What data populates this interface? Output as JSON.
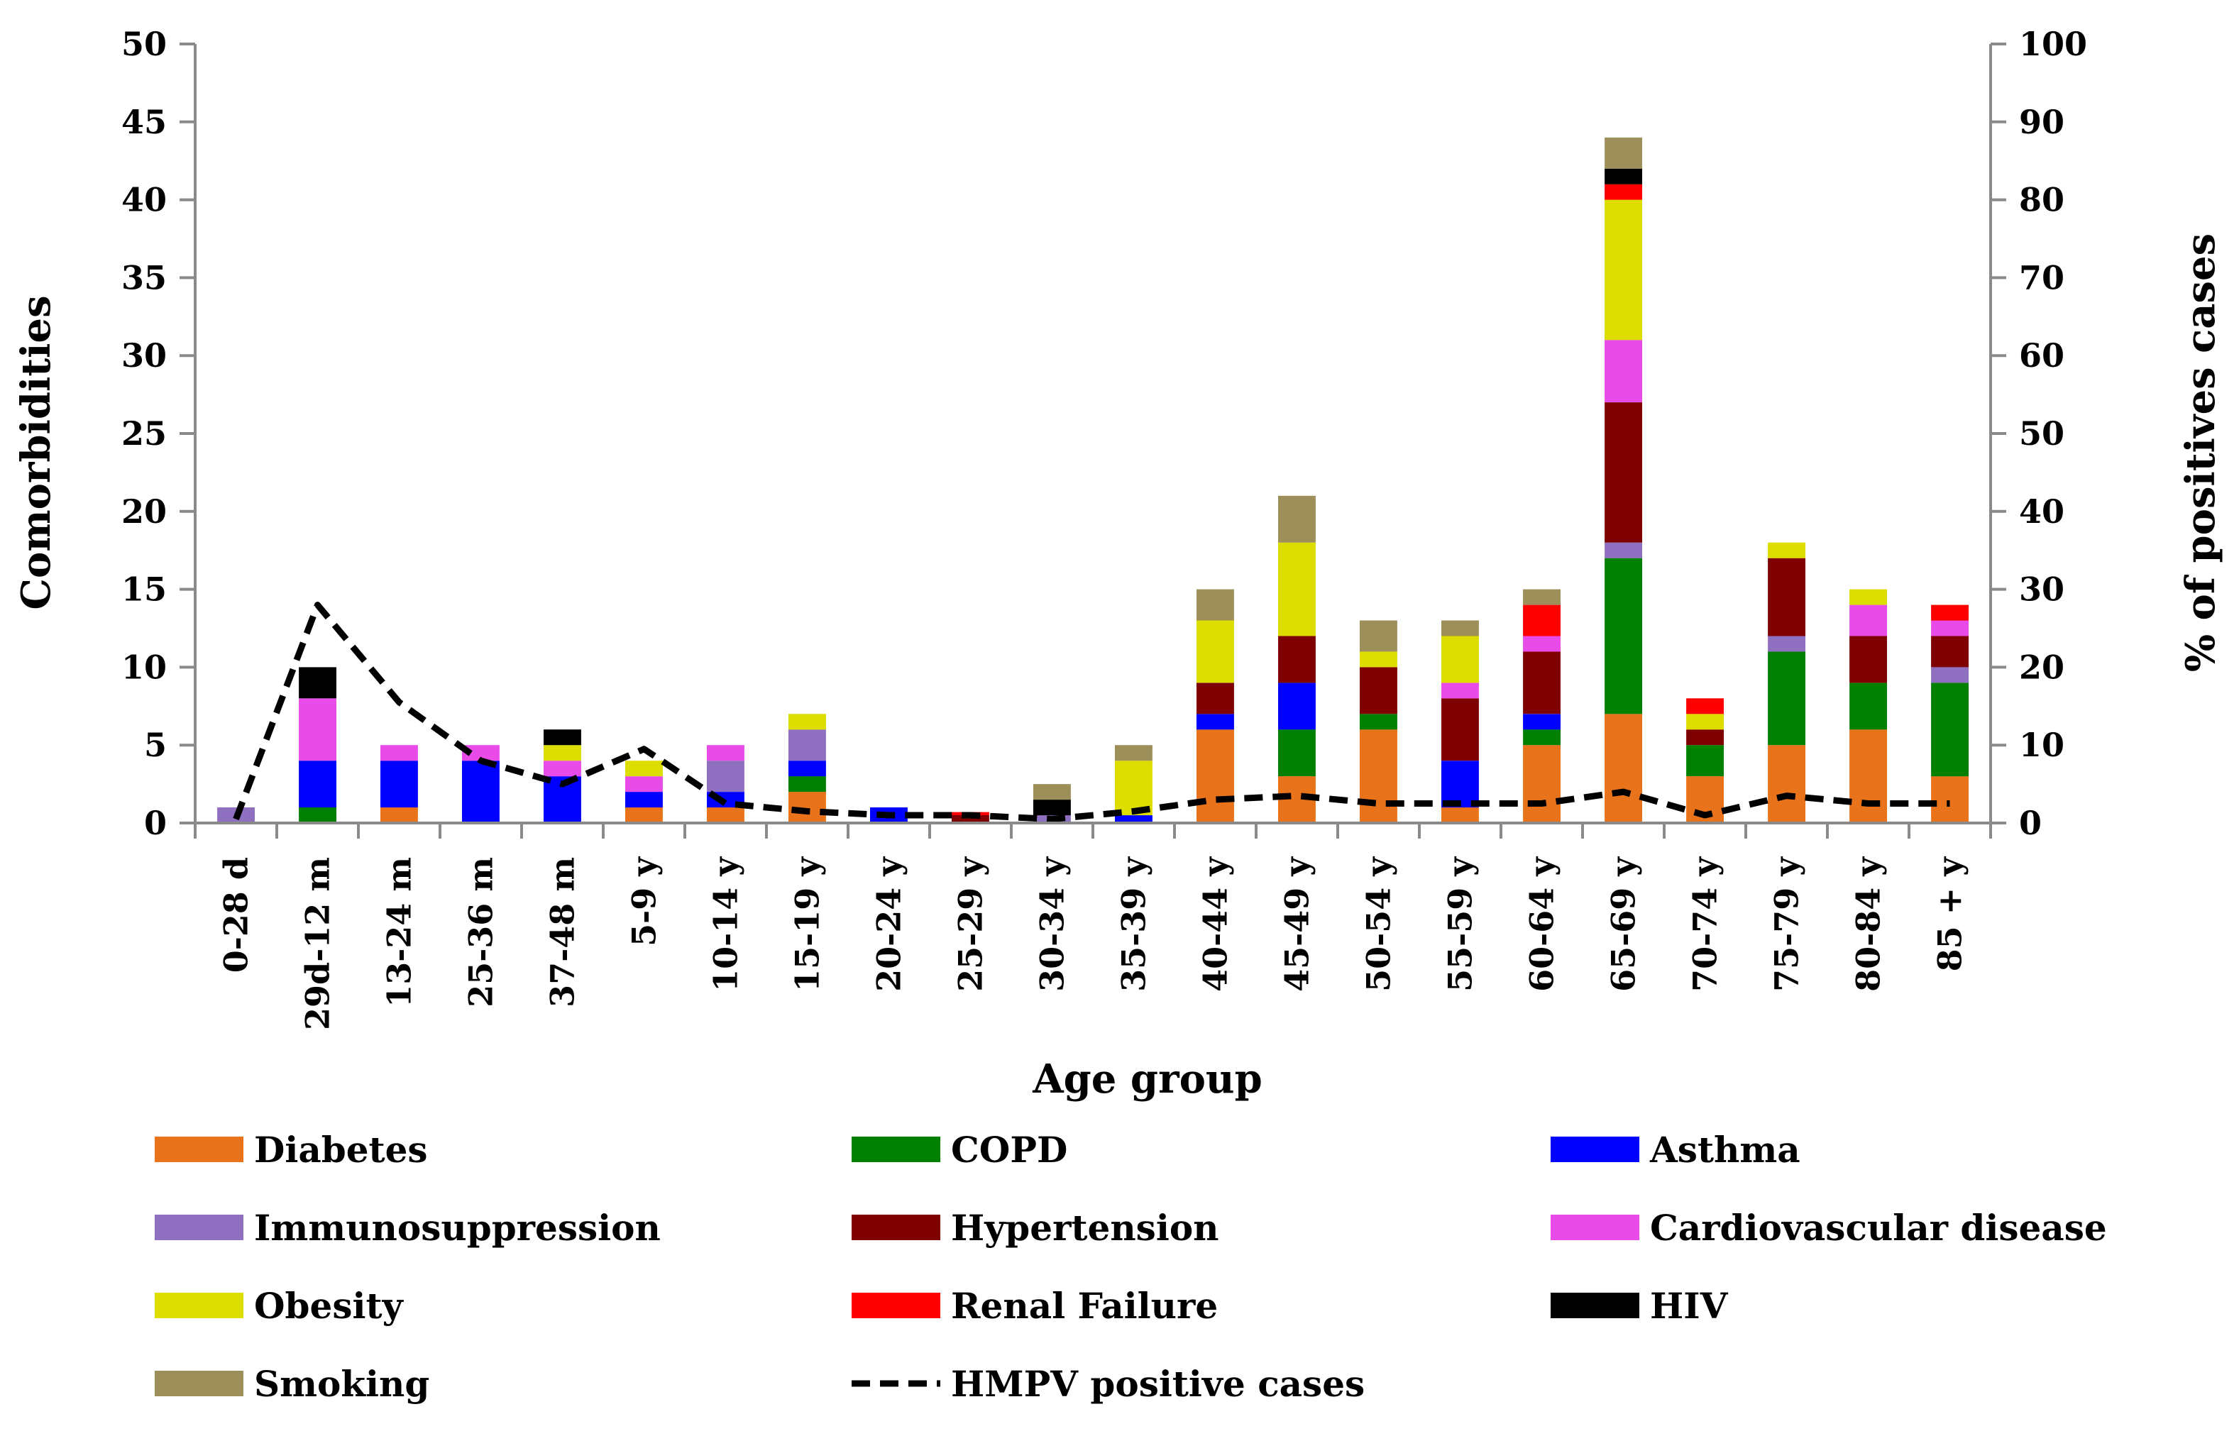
{
  "chart_data": {
    "type": "bar",
    "stacked": true,
    "xlabel": "Age group",
    "ylabel": "Comorbidities",
    "y2label": "% of positives cases",
    "ylim": [
      0,
      50
    ],
    "y2lim": [
      0,
      100
    ],
    "yticks": [
      "0",
      "5",
      "10",
      "15",
      "20",
      "25",
      "30",
      "35",
      "40",
      "45",
      "50"
    ],
    "y2ticks": [
      "0",
      "10",
      "20",
      "30",
      "40",
      "50",
      "60",
      "70",
      "80",
      "90",
      "100"
    ],
    "legend_position": "bottom",
    "categories": [
      "0-28 d",
      "29d-12 m",
      "13-24 m",
      "25-36 m",
      "37-48 m",
      "5-9 y",
      "10-14 y",
      "15-19 y",
      "20-24 y",
      "25-29 y",
      "30-34 y",
      "35-39 y",
      "40-44 y",
      "45-49 y",
      "50-54 y",
      "55-59 y",
      "60-64 y",
      "65-69 y",
      "70-74 y",
      "75-79 y",
      "80-84 y",
      "85 + y"
    ],
    "series": [
      {
        "name": "Diabetes",
        "color": "#e8731a",
        "values": [
          0,
          0,
          1,
          0,
          0,
          1,
          1,
          2,
          0,
          0,
          0,
          0,
          6,
          3,
          6,
          1,
          5,
          7,
          3,
          5,
          6,
          3
        ]
      },
      {
        "name": "COPD",
        "color": "#008000",
        "values": [
          0,
          1,
          0,
          0,
          0,
          0,
          0,
          1,
          0,
          0,
          0,
          0,
          0,
          3,
          1,
          0,
          1,
          10,
          2,
          6,
          3,
          6
        ]
      },
      {
        "name": "Asthma",
        "color": "#0000ff",
        "values": [
          0,
          3,
          3,
          4,
          3,
          1,
          1,
          1,
          1,
          0,
          0,
          0.5,
          1,
          3,
          0,
          3,
          1,
          0,
          0,
          0,
          0,
          0
        ]
      },
      {
        "name": "Immunosuppression",
        "color": "#8f6fbf",
        "values": [
          1,
          0,
          0,
          0,
          0,
          0,
          2,
          2,
          0,
          0,
          0.5,
          0,
          0,
          0,
          0,
          0,
          0,
          1,
          0,
          1,
          0,
          1
        ]
      },
      {
        "name": "Hypertension",
        "color": "#7f0000",
        "values": [
          0,
          0,
          0,
          0,
          0,
          0,
          0,
          0,
          0,
          0.5,
          0,
          0,
          2,
          3,
          3,
          4,
          4,
          9,
          1,
          5,
          3,
          2
        ]
      },
      {
        "name": "Cardiovascular disease",
        "color": "#e84be8",
        "values": [
          0,
          4,
          1,
          1,
          1,
          1,
          1,
          0,
          0,
          0,
          0,
          0,
          0,
          0,
          0,
          1,
          1,
          4,
          0,
          0,
          2,
          1
        ]
      },
      {
        "name": "Obesity",
        "color": "#dddd00",
        "values": [
          0,
          0,
          0,
          0,
          1,
          1,
          0,
          1,
          0,
          0,
          0,
          3.5,
          4,
          6,
          1,
          3,
          0,
          9,
          1,
          1,
          1,
          0
        ]
      },
      {
        "name": "Renal Failure",
        "color": "#ff0000",
        "values": [
          0,
          0,
          0,
          0,
          0,
          0,
          0,
          0,
          0,
          0.2,
          0,
          0,
          0,
          0,
          0,
          0,
          2,
          1,
          1,
          0,
          0,
          1
        ]
      },
      {
        "name": "HIV",
        "color": "#000000",
        "values": [
          0,
          2,
          0,
          0,
          1,
          0,
          0,
          0,
          0,
          0,
          1,
          0,
          0,
          0,
          0,
          0,
          0,
          1,
          0,
          0,
          0,
          0
        ]
      },
      {
        "name": "Smoking",
        "color": "#9c8f5a",
        "values": [
          0,
          0,
          0,
          0,
          0,
          0,
          0,
          0,
          0,
          0,
          1,
          1,
          2,
          3,
          2,
          1,
          1,
          2,
          0,
          0,
          0,
          0
        ]
      }
    ],
    "line_series": {
      "name": "HMPV positive cases",
      "axis": "right",
      "style": "dashed",
      "color": "#000000",
      "values": [
        0.5,
        28,
        15.5,
        8,
        5,
        9.5,
        2.5,
        1.5,
        1,
        1,
        0.5,
        1.5,
        3,
        3.5,
        2.5,
        2.5,
        2.5,
        4,
        1,
        3.5,
        2.5,
        2.5
      ]
    }
  }
}
